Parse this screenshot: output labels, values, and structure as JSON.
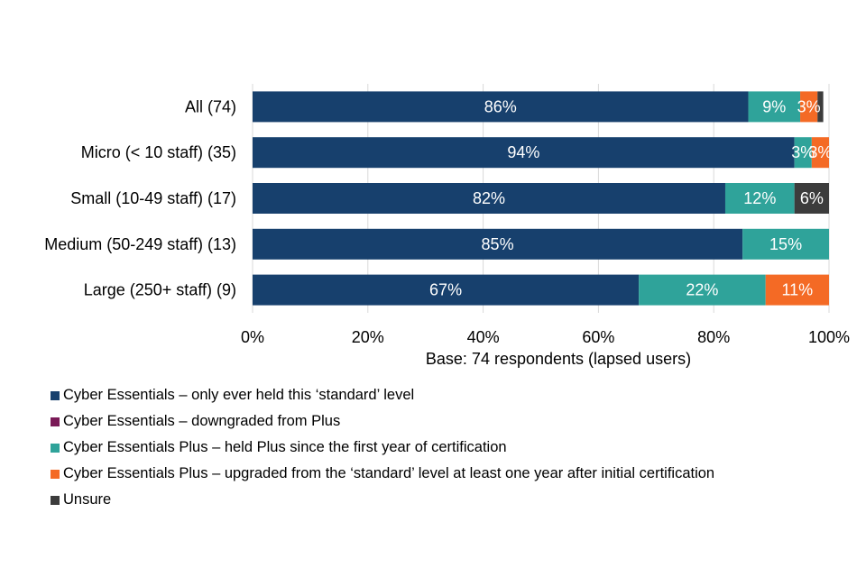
{
  "chart_data": {
    "type": "bar",
    "orientation": "horizontal",
    "stacked": true,
    "categories": [
      "All (74)",
      "Micro (< 10 staff) (35)",
      "Small (10-49 staff) (17)",
      "Medium (50-249 staff) (13)",
      "Large (250+ staff) (9)"
    ],
    "series": [
      {
        "name": "Cyber Essentials – only ever held this ‘standard’ level",
        "color": "#17406d",
        "values": [
          86,
          94,
          82,
          85,
          67
        ],
        "labels": [
          "86%",
          "94%",
          "82%",
          "85%",
          "67%"
        ]
      },
      {
        "name": "Cyber Essentials – downgraded from Plus",
        "color": "#7a1a57",
        "values": [
          0,
          0,
          0,
          0,
          0
        ],
        "labels": [
          "",
          "",
          "",
          "",
          ""
        ]
      },
      {
        "name": "Cyber Essentials Plus – held Plus since the first year of certification",
        "color": "#2fa39a",
        "values": [
          9,
          3,
          12,
          15,
          22
        ],
        "labels": [
          "9%",
          "3%",
          "12%",
          "15%",
          "22%"
        ]
      },
      {
        "name": "Cyber Essentials Plus – upgraded from the ‘standard’ level at least one year after initial certification",
        "color": "#f46a25",
        "values": [
          3,
          3,
          0,
          0,
          11
        ],
        "labels": [
          "3%",
          "3%",
          "",
          "",
          "11%"
        ]
      },
      {
        "name": "Unsure",
        "color": "#3c3c3c",
        "values": [
          1,
          0,
          6,
          0,
          0
        ],
        "labels": [
          "",
          "",
          "6%",
          "",
          ""
        ]
      }
    ],
    "xlim": [
      0,
      100
    ],
    "xticks": [
      "0%",
      "20%",
      "40%",
      "60%",
      "80%",
      "100%"
    ],
    "xlabel": "Base: 74 respondents (lapsed users)",
    "gridlines": true,
    "legend_position": "bottom-left"
  }
}
